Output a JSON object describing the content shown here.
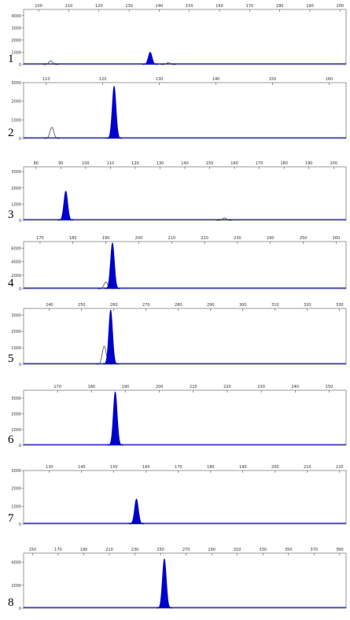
{
  "chart_data": [
    {
      "type": "peaks",
      "label": "1",
      "xlim": [
        95,
        202
      ],
      "ylim": [
        0,
        4500
      ],
      "xticks": [
        100,
        110,
        120,
        130,
        140,
        150,
        160,
        170,
        180,
        190,
        200
      ],
      "yticks": [
        0,
        1000,
        2000,
        3000,
        4000
      ],
      "series": [
        {
          "color": "#0000cc",
          "fill": true,
          "x": [
            137
          ],
          "values": [
            1000
          ]
        },
        {
          "color": "#333333",
          "fill": false,
          "x": [
            104,
            143
          ],
          "values": [
            300,
            150
          ]
        }
      ]
    },
    {
      "type": "peaks",
      "label": "2",
      "xlim": [
        106,
        163
      ],
      "ylim": [
        0,
        3000
      ],
      "xticks": [
        110,
        120,
        130,
        140,
        150,
        160
      ],
      "yticks": [
        0,
        1000,
        2000,
        3000
      ],
      "series": [
        {
          "color": "#0000cc",
          "fill": true,
          "x": [
            122
          ],
          "values": [
            2800
          ]
        },
        {
          "color": "#333333",
          "fill": false,
          "x": [
            111
          ],
          "values": [
            600
          ]
        }
      ]
    },
    {
      "type": "peaks",
      "label": "3",
      "xlim": [
        75,
        205
      ],
      "ylim": [
        0,
        3300
      ],
      "xticks": [
        80,
        90,
        100,
        110,
        120,
        130,
        140,
        150,
        160,
        170,
        180,
        190,
        200
      ],
      "yticks": [
        0,
        1000,
        2000,
        3000
      ],
      "series": [
        {
          "color": "#0000cc",
          "fill": true,
          "x": [
            92
          ],
          "values": [
            1800
          ]
        },
        {
          "color": "#333333",
          "fill": false,
          "x": [
            156
          ],
          "values": [
            150
          ]
        }
      ]
    },
    {
      "type": "peaks",
      "label": "4",
      "xlim": [
        165,
        263
      ],
      "ylim": [
        0,
        7000
      ],
      "xticks": [
        170,
        180,
        190,
        200,
        210,
        220,
        230,
        240,
        250,
        260
      ],
      "yticks": [
        0,
        2000,
        4000,
        6000
      ],
      "series": [
        {
          "color": "#0000cc",
          "fill": true,
          "x": [
            192
          ],
          "values": [
            6800
          ]
        },
        {
          "color": "#333333",
          "fill": false,
          "x": [
            190
          ],
          "values": [
            1000
          ]
        }
      ]
    },
    {
      "type": "peaks",
      "label": "5",
      "xlim": [
        232,
        332
      ],
      "ylim": [
        0,
        3400
      ],
      "xticks": [
        240,
        250,
        260,
        270,
        280,
        290,
        300,
        310,
        320,
        330
      ],
      "yticks": [
        0,
        1000,
        2000,
        3000
      ],
      "series": [
        {
          "color": "#0000cc",
          "fill": true,
          "x": [
            259
          ],
          "values": [
            3300
          ]
        },
        {
          "color": "#333333",
          "fill": false,
          "x": [
            257
          ],
          "values": [
            1100
          ]
        }
      ]
    },
    {
      "type": "peaks",
      "label": "6",
      "xlim": [
        160,
        255
      ],
      "ylim": [
        0,
        3500
      ],
      "xticks": [
        170,
        180,
        190,
        200,
        210,
        220,
        230,
        240,
        250
      ],
      "yticks": [
        0,
        1000,
        2000,
        3000
      ],
      "series": [
        {
          "color": "#0000cc",
          "fill": true,
          "x": [
            187
          ],
          "values": [
            3400
          ]
        }
      ]
    },
    {
      "type": "peaks",
      "label": "7",
      "xlim": [
        122,
        222
      ],
      "ylim": [
        0,
        3000
      ],
      "xticks": [
        130,
        140,
        150,
        160,
        170,
        180,
        190,
        200,
        210,
        220
      ],
      "yticks": [
        0,
        1000,
        2000,
        3000
      ],
      "series": [
        {
          "color": "#0000cc",
          "fill": true,
          "x": [
            157
          ],
          "values": [
            1400
          ]
        }
      ]
    },
    {
      "type": "peaks",
      "label": "8",
      "xlim": [
        143,
        395
      ],
      "ylim": [
        0,
        4800
      ],
      "xticks": [
        150,
        170,
        190,
        210,
        230,
        250,
        270,
        290,
        310,
        330,
        350,
        370,
        390
      ],
      "yticks": [
        0,
        2000,
        4000
      ],
      "series": [
        {
          "color": "#0000cc",
          "fill": true,
          "x": [
            253
          ],
          "values": [
            4300
          ]
        }
      ]
    }
  ]
}
